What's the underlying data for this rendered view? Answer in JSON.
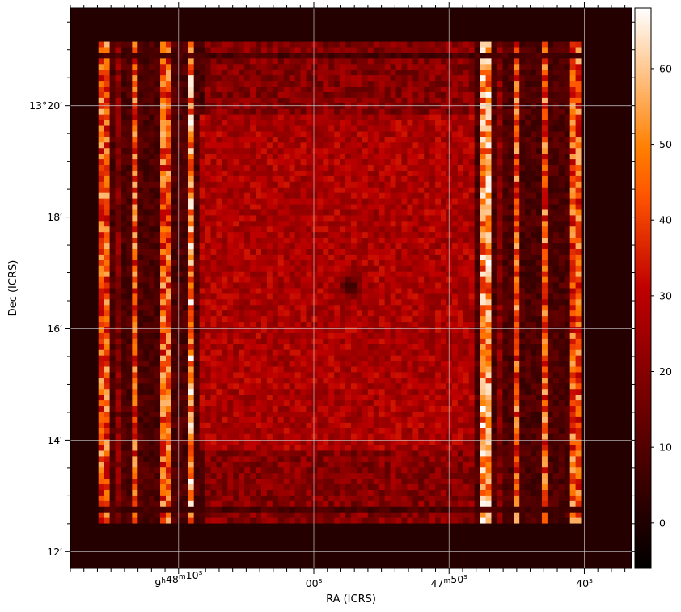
{
  "chart_data": {
    "type": "heatmap",
    "xlabel": "RA (ICRS)",
    "ylabel": "Dec (ICRS)",
    "colormap": "gist_heat",
    "colorbar": {
      "range": [
        -6,
        68
      ],
      "ticks": [
        0,
        10,
        20,
        30,
        40,
        50,
        60
      ],
      "tick_labels": [
        "0",
        "10",
        "20",
        "30",
        "40",
        "50",
        "60"
      ]
    },
    "grid": true,
    "grid_color": "#cccccc",
    "x_ticks": [
      {
        "sec": 10,
        "label_h": "9",
        "label_m": "48",
        "label_s": "10"
      },
      {
        "sec": 0,
        "label_h": "",
        "label_m": "",
        "label_s": "00"
      },
      {
        "sec": -10,
        "label_h": "",
        "label_m": "47",
        "label_s": "50"
      },
      {
        "sec": -20,
        "label_h": "",
        "label_m": "",
        "label_s": "40"
      }
    ],
    "x_range_sec": [
      18,
      -23.5
    ],
    "y_ticks": [
      {
        "arcmin": 20,
        "label_d": "13",
        "label_m": "20"
      },
      {
        "arcmin": 18,
        "label_d": "",
        "label_m": "18"
      },
      {
        "arcmin": 16,
        "label_d": "",
        "label_m": "16"
      },
      {
        "arcmin": 14,
        "label_d": "",
        "label_m": "14"
      },
      {
        "arcmin": 12,
        "label_d": "",
        "label_m": "12"
      }
    ],
    "y_range_arcmin": [
      11.7,
      21.75
    ],
    "image": {
      "background_value": 1,
      "interior_value": 27,
      "dip_center": {
        "ra_sec": -2.7,
        "dec_arcmin": 16.75,
        "value": 5
      },
      "bright_columns_left_ra_sec": [
        15.6,
        13.2,
        11.1,
        9.1
      ],
      "bright_columns_right_ra_sec": [
        -12.6,
        -15.0,
        -17.1,
        -19.2
      ],
      "peak_value": 68
    }
  }
}
